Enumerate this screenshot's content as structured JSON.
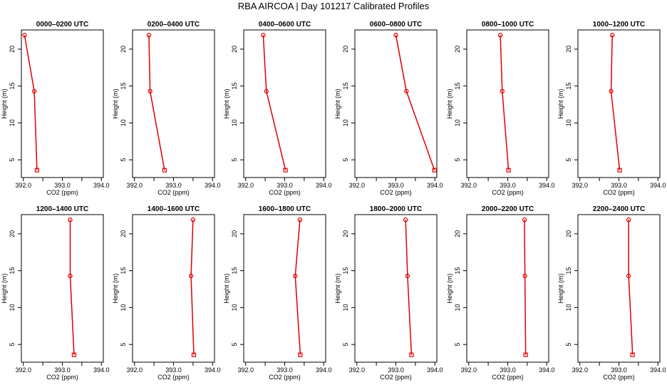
{
  "figure": {
    "title": "RBA AIRCOA  |  Day 101217  Calibrated Profiles"
  },
  "colors": {
    "series": "#dd0000",
    "axis": "#000000"
  },
  "chart_data": [
    {
      "type": "line",
      "title": "0000–0200 UTC",
      "xlabel": "CO2 (ppm)",
      "ylabel": "Height (m)",
      "xlim": [
        391.95,
        394.05
      ],
      "ylim": [
        2.6,
        22.6
      ],
      "xticks": [
        392.0,
        392.5,
        393.0,
        393.5,
        394.0
      ],
      "xticklabels": [
        "392.0",
        "",
        "393.0",
        "",
        "394.0"
      ],
      "yticks": [
        5,
        10,
        15,
        20
      ],
      "yticklabels": [
        "5",
        "10",
        "15",
        "20"
      ],
      "series": [
        {
          "name": "CO2",
          "x": [
            392.35,
            392.28,
            392.03
          ],
          "y": [
            3.6,
            14.3,
            21.9
          ]
        }
      ]
    },
    {
      "type": "line",
      "title": "0200–0400 UTC",
      "xlabel": "CO2 (ppm)",
      "ylabel": "Height (m)",
      "xlim": [
        391.95,
        394.05
      ],
      "ylim": [
        2.6,
        22.6
      ],
      "xticks": [
        392.0,
        392.5,
        393.0,
        393.5,
        394.0
      ],
      "xticklabels": [
        "392.0",
        "",
        "393.0",
        "",
        "394.0"
      ],
      "yticks": [
        5,
        10,
        15,
        20
      ],
      "yticklabels": [
        "5",
        "10",
        "15",
        "20"
      ],
      "series": [
        {
          "name": "CO2",
          "x": [
            392.77,
            392.4,
            392.37
          ],
          "y": [
            3.6,
            14.3,
            21.9
          ]
        }
      ]
    },
    {
      "type": "line",
      "title": "0400–0600 UTC",
      "xlabel": "CO2 (ppm)",
      "ylabel": "Height (m)",
      "xlim": [
        391.95,
        394.05
      ],
      "ylim": [
        2.6,
        22.6
      ],
      "xticks": [
        392.0,
        392.5,
        393.0,
        393.5,
        394.0
      ],
      "xticklabels": [
        "392.0",
        "",
        "393.0",
        "",
        "394.0"
      ],
      "yticks": [
        5,
        10,
        15,
        20
      ],
      "yticklabels": [
        "5",
        "10",
        "15",
        "20"
      ],
      "series": [
        {
          "name": "CO2",
          "x": [
            393.02,
            392.53,
            392.45
          ],
          "y": [
            3.6,
            14.3,
            21.9
          ]
        }
      ]
    },
    {
      "type": "line",
      "title": "0600–0800 UTC",
      "xlabel": "CO2 (ppm)",
      "ylabel": "Height (m)",
      "xlim": [
        391.95,
        394.05
      ],
      "ylim": [
        2.6,
        22.6
      ],
      "xticks": [
        392.0,
        392.5,
        393.0,
        393.5,
        394.0
      ],
      "xticklabels": [
        "392.0",
        "",
        "393.0",
        "",
        "394.0"
      ],
      "yticks": [
        5,
        10,
        15,
        20
      ],
      "yticklabels": [
        "5",
        "10",
        "15",
        "20"
      ],
      "series": [
        {
          "name": "CO2",
          "x": [
            393.99,
            393.27,
            393.0
          ],
          "y": [
            3.6,
            14.3,
            21.9
          ]
        }
      ]
    },
    {
      "type": "line",
      "title": "0800–1000 UTC",
      "xlabel": "CO2 (ppm)",
      "ylabel": "Height (m)",
      "xlim": [
        391.95,
        394.05
      ],
      "ylim": [
        2.6,
        22.6
      ],
      "xticks": [
        392.0,
        392.5,
        393.0,
        393.5,
        394.0
      ],
      "xticklabels": [
        "392.0",
        "",
        "393.0",
        "",
        "394.0"
      ],
      "yticks": [
        5,
        10,
        15,
        20
      ],
      "yticklabels": [
        "5",
        "10",
        "15",
        "20"
      ],
      "series": [
        {
          "name": "CO2",
          "x": [
            393.02,
            392.86,
            392.81
          ],
          "y": [
            3.6,
            14.3,
            21.9
          ]
        }
      ]
    },
    {
      "type": "line",
      "title": "1000–1200 UTC",
      "xlabel": "CO2 (ppm)",
      "ylabel": "Height (m)",
      "xlim": [
        391.95,
        394.05
      ],
      "ylim": [
        2.6,
        22.6
      ],
      "xticks": [
        392.0,
        392.5,
        393.0,
        393.5,
        394.0
      ],
      "xticklabels": [
        "392.0",
        "",
        "393.0",
        "",
        "394.0"
      ],
      "yticks": [
        5,
        10,
        15,
        20
      ],
      "yticklabels": [
        "5",
        "10",
        "15",
        "20"
      ],
      "series": [
        {
          "name": "CO2",
          "x": [
            393.02,
            392.8,
            392.83
          ],
          "y": [
            3.6,
            14.3,
            21.9
          ]
        }
      ]
    },
    {
      "type": "line",
      "title": "1200–1400 UTC",
      "xlabel": "CO2 (ppm)",
      "ylabel": "Height (m)",
      "xlim": [
        391.95,
        394.05
      ],
      "ylim": [
        2.6,
        22.6
      ],
      "xticks": [
        392.0,
        392.5,
        393.0,
        393.5,
        394.0
      ],
      "xticklabels": [
        "392.0",
        "",
        "393.0",
        "",
        "394.0"
      ],
      "yticks": [
        5,
        10,
        15,
        20
      ],
      "yticklabels": [
        "5",
        "10",
        "15",
        "20"
      ],
      "series": [
        {
          "name": "CO2",
          "x": [
            393.3,
            393.2,
            393.2
          ],
          "y": [
            3.6,
            14.3,
            21.9
          ]
        }
      ]
    },
    {
      "type": "line",
      "title": "1400–1600 UTC",
      "xlabel": "CO2 (ppm)",
      "ylabel": "Height (m)",
      "xlim": [
        391.95,
        394.05
      ],
      "ylim": [
        2.6,
        22.6
      ],
      "xticks": [
        392.0,
        392.5,
        393.0,
        393.5,
        394.0
      ],
      "xticklabels": [
        "392.0",
        "",
        "393.0",
        "",
        "394.0"
      ],
      "yticks": [
        5,
        10,
        15,
        20
      ],
      "yticklabels": [
        "5",
        "10",
        "15",
        "20"
      ],
      "series": [
        {
          "name": "CO2",
          "x": [
            393.52,
            393.45,
            393.5
          ],
          "y": [
            3.6,
            14.3,
            21.9
          ]
        }
      ]
    },
    {
      "type": "line",
      "title": "1600–1800 UTC",
      "xlabel": "CO2 (ppm)",
      "ylabel": "Height (m)",
      "xlim": [
        391.95,
        394.05
      ],
      "ylim": [
        2.6,
        22.6
      ],
      "xticks": [
        392.0,
        392.5,
        393.0,
        393.5,
        394.0
      ],
      "xticklabels": [
        "392.0",
        "",
        "393.0",
        "",
        "394.0"
      ],
      "yticks": [
        5,
        10,
        15,
        20
      ],
      "yticklabels": [
        "5",
        "10",
        "15",
        "20"
      ],
      "series": [
        {
          "name": "CO2",
          "x": [
            393.4,
            393.27,
            393.39
          ],
          "y": [
            3.6,
            14.3,
            21.9
          ]
        }
      ]
    },
    {
      "type": "line",
      "title": "1800–2000 UTC",
      "xlabel": "CO2 (ppm)",
      "ylabel": "Height (m)",
      "xlim": [
        391.95,
        394.05
      ],
      "ylim": [
        2.6,
        22.6
      ],
      "xticks": [
        392.0,
        392.5,
        393.0,
        393.5,
        394.0
      ],
      "xticklabels": [
        "392.0",
        "",
        "393.0",
        "",
        "394.0"
      ],
      "yticks": [
        5,
        10,
        15,
        20
      ],
      "yticklabels": [
        "5",
        "10",
        "15",
        "20"
      ],
      "series": [
        {
          "name": "CO2",
          "x": [
            393.4,
            393.3,
            393.25
          ],
          "y": [
            3.6,
            14.3,
            21.9
          ]
        }
      ]
    },
    {
      "type": "line",
      "title": "2000–2200 UTC",
      "xlabel": "CO2 (ppm)",
      "ylabel": "Height (m)",
      "xlim": [
        391.95,
        394.05
      ],
      "ylim": [
        2.6,
        22.6
      ],
      "xticks": [
        392.0,
        392.5,
        393.0,
        393.5,
        394.0
      ],
      "xticklabels": [
        "392.0",
        "",
        "393.0",
        "",
        "394.0"
      ],
      "yticks": [
        5,
        10,
        15,
        20
      ],
      "yticklabels": [
        "5",
        "10",
        "15",
        "20"
      ],
      "series": [
        {
          "name": "CO2",
          "x": [
            393.46,
            393.44,
            393.43
          ],
          "y": [
            3.6,
            14.3,
            21.9
          ]
        }
      ]
    },
    {
      "type": "line",
      "title": "2200–2400 UTC",
      "xlabel": "CO2 (ppm)",
      "ylabel": "Height (m)",
      "xlim": [
        391.95,
        394.05
      ],
      "ylim": [
        2.6,
        22.6
      ],
      "xticks": [
        392.0,
        392.5,
        393.0,
        393.5,
        394.0
      ],
      "xticklabels": [
        "392.0",
        "",
        "393.0",
        "",
        "394.0"
      ],
      "yticks": [
        5,
        10,
        15,
        20
      ],
      "yticklabels": [
        "5",
        "10",
        "15",
        "20"
      ],
      "series": [
        {
          "name": "CO2",
          "x": [
            393.35,
            393.25,
            393.25
          ],
          "y": [
            3.6,
            14.3,
            21.9
          ]
        }
      ]
    }
  ]
}
